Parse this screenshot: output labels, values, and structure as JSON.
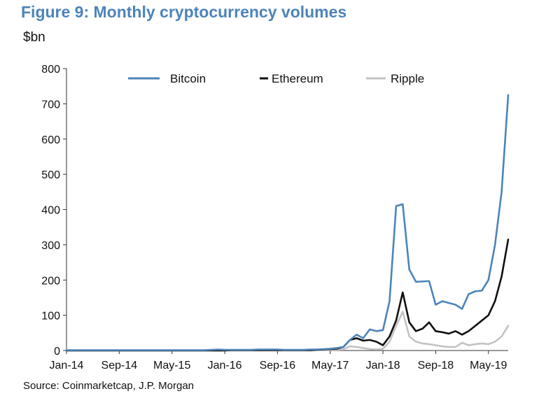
{
  "figure_title": "Figure 9: Monthly cryptocurrency volumes",
  "unit_label": "$bn",
  "source_note": "Source:  Coinmarketcap, J.P. Morgan",
  "chart_data": {
    "type": "line",
    "title": "Figure 9: Monthly cryptocurrency volumes",
    "ylabel": "$bn",
    "xlabel": "",
    "ylim": [
      0,
      800
    ],
    "y_ticks": [
      "0",
      "100",
      "200",
      "300",
      "400",
      "500",
      "600",
      "700",
      "800"
    ],
    "x_start": "Jan-14",
    "x_end": "May-19",
    "x_tick_labels": [
      "Jan-14",
      "Sep-14",
      "May-15",
      "Jan-16",
      "Sep-16",
      "May-17",
      "Jan-18",
      "Sep-18",
      "May-19"
    ],
    "grid": false,
    "legend_position": "top-center",
    "series": [
      {
        "name": "Bitcoin",
        "color": "#4d84ba",
        "values": [
          1,
          1,
          1,
          1,
          1,
          1,
          1,
          1,
          1,
          1,
          1,
          1,
          1,
          1,
          1,
          1,
          1,
          1,
          1,
          1,
          1,
          1,
          2,
          3,
          2,
          2,
          2,
          2,
          2,
          3,
          3,
          3,
          3,
          2,
          2,
          2,
          2,
          3,
          3,
          4,
          5,
          7,
          10,
          30,
          45,
          35,
          60,
          55,
          58,
          140,
          410,
          415,
          230,
          195,
          196,
          197,
          130,
          140,
          135,
          130,
          118,
          160,
          168,
          170,
          200,
          300,
          450,
          725
        ]
      },
      {
        "name": "Ethereum",
        "color": "#111111",
        "values": [
          0,
          0,
          0,
          0,
          0,
          0,
          0,
          0,
          0,
          0,
          0,
          0,
          0,
          0,
          0,
          0,
          0,
          0,
          0,
          0,
          0,
          0,
          0,
          0,
          0,
          1,
          1,
          1,
          1,
          1,
          1,
          1,
          1,
          1,
          1,
          1,
          1,
          1,
          2,
          3,
          4,
          5,
          10,
          30,
          35,
          28,
          30,
          25,
          15,
          40,
          85,
          165,
          80,
          55,
          62,
          80,
          55,
          52,
          48,
          55,
          45,
          55,
          70,
          85,
          100,
          140,
          210,
          315
        ]
      },
      {
        "name": "Ripple",
        "color": "#c3c3c3",
        "values": [
          0,
          0,
          0,
          0,
          0,
          0,
          0,
          0,
          0,
          0,
          0,
          0,
          0,
          0,
          0,
          0,
          0,
          0,
          0,
          0,
          0,
          0,
          0,
          0,
          0,
          0,
          0,
          0,
          0,
          0,
          0,
          0,
          0,
          0,
          0,
          0,
          0,
          0,
          1,
          1,
          2,
          2,
          3,
          12,
          10,
          7,
          4,
          3,
          5,
          25,
          70,
          110,
          40,
          25,
          20,
          18,
          15,
          12,
          10,
          10,
          22,
          15,
          18,
          20,
          18,
          25,
          40,
          70
        ]
      }
    ]
  }
}
